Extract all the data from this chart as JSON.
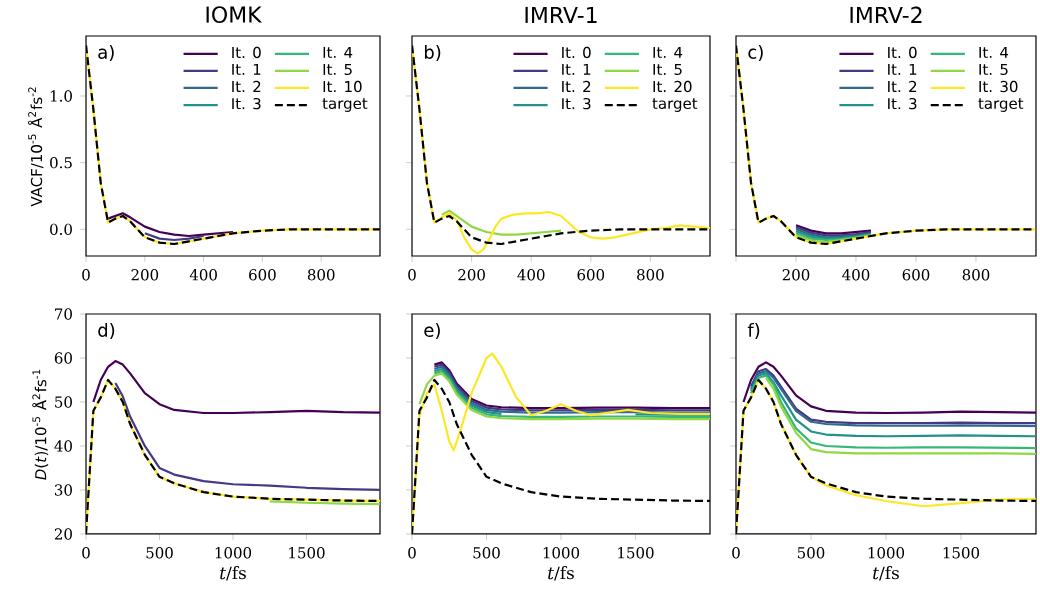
{
  "chart_data": [
    {
      "type": "line",
      "title": "IOMK",
      "ylabel": "VACF/10$^{-5}$ Å$^{2}$fs$^{-2}$",
      "annotations": [
        "a)"
      ],
      "legend": "top right",
      "x": [
        0,
        25,
        50,
        75,
        100,
        125,
        150,
        200,
        250,
        300,
        350,
        400,
        450,
        500,
        600,
        700,
        800,
        900,
        1000
      ],
      "xlim": [
        0,
        1000
      ],
      "ylim": [
        -0.2,
        1.45
      ],
      "xticks": [
        0,
        200,
        400,
        600,
        800
      ],
      "yticks": [
        {
          "value": 0,
          "label": "0.0"
        },
        {
          "value": 0.5,
          "label": "0.5"
        },
        {
          "value": 1,
          "label": "1.0"
        }
      ],
      "series": [
        {
          "name": "It. 0",
          "color": "#440154",
          "values": [
            null,
            null,
            null,
            0.08,
            0.1,
            0.12,
            0.09,
            0.02,
            -0.02,
            -0.04,
            -0.05,
            -0.04,
            -0.03,
            -0.02,
            null,
            null,
            null,
            null,
            null
          ]
        },
        {
          "name": "It. 1",
          "color": "#443983",
          "values": [
            null,
            null,
            null,
            null,
            null,
            null,
            null,
            -0.03,
            -0.07,
            -0.08,
            -0.07,
            -0.05,
            null,
            null,
            null,
            null,
            null,
            null,
            null
          ]
        },
        {
          "name": "It. 2",
          "color": "#31688e",
          "values": [
            null,
            null,
            null,
            null,
            null,
            null,
            null,
            null,
            null,
            null,
            null,
            null,
            null,
            null,
            null,
            null,
            null,
            null,
            null
          ]
        },
        {
          "name": "It. 3",
          "color": "#21918c",
          "values": [
            null,
            null,
            null,
            null,
            null,
            null,
            null,
            null,
            null,
            null,
            null,
            null,
            null,
            null,
            null,
            null,
            null,
            null,
            null
          ]
        },
        {
          "name": "It. 4",
          "color": "#35b779",
          "values": [
            null,
            null,
            null,
            null,
            null,
            null,
            null,
            null,
            null,
            null,
            null,
            null,
            null,
            null,
            null,
            null,
            null,
            null,
            null
          ]
        },
        {
          "name": "It. 5",
          "color": "#90d743",
          "values": [
            null,
            null,
            null,
            null,
            null,
            null,
            null,
            null,
            null,
            null,
            null,
            null,
            null,
            null,
            null,
            null,
            null,
            null,
            null
          ]
        },
        {
          "name": "It. 10",
          "color": "#fde725",
          "values": [
            1.38,
            0.9,
            0.35,
            0.05,
            0.08,
            0.1,
            0.06,
            -0.06,
            -0.1,
            -0.11,
            -0.09,
            -0.07,
            -0.05,
            -0.03,
            -0.01,
            0,
            0,
            0,
            0
          ]
        },
        {
          "name": "target",
          "color": "#000000",
          "line_style": "dashed",
          "values": [
            1.38,
            0.9,
            0.35,
            0.05,
            0.08,
            0.1,
            0.06,
            -0.06,
            -0.1,
            -0.11,
            -0.09,
            -0.07,
            -0.05,
            -0.03,
            -0.01,
            0,
            0,
            0,
            0
          ]
        }
      ]
    },
    {
      "type": "line",
      "title": "IMRV-1",
      "annotations": [
        "b)"
      ],
      "legend": "top right",
      "tick_labels": "x",
      "x": [
        0,
        25,
        50,
        75,
        100,
        125,
        150,
        200,
        250,
        300,
        350,
        400,
        450,
        500,
        600,
        700,
        800,
        900,
        1000
      ],
      "xlim": [
        0,
        1000
      ],
      "ylim": [
        -0.2,
        1.45
      ],
      "xticks": [
        0,
        200,
        400,
        600,
        800
      ],
      "yticks": [
        {
          "value": 0,
          "label": null
        },
        {
          "value": 0.5,
          "label": null
        },
        {
          "value": 1,
          "label": null
        }
      ],
      "series": [
        {
          "name": "It. 0",
          "color": "#440154",
          "values": [
            null,
            null,
            null,
            null,
            null,
            null,
            null,
            null,
            null,
            null,
            null,
            null,
            null,
            null,
            null,
            null,
            null,
            null,
            null
          ]
        },
        {
          "name": "It. 1",
          "color": "#443983",
          "values": [
            null,
            null,
            null,
            null,
            null,
            null,
            null,
            null,
            null,
            null,
            null,
            null,
            null,
            null,
            null,
            null,
            null,
            null,
            null
          ]
        },
        {
          "name": "It. 2",
          "color": "#31688e",
          "values": [
            null,
            null,
            null,
            null,
            null,
            null,
            null,
            null,
            null,
            null,
            null,
            null,
            null,
            null,
            null,
            null,
            null,
            null,
            null
          ]
        },
        {
          "name": "It. 3",
          "color": "#21918c",
          "values": [
            null,
            null,
            null,
            null,
            null,
            null,
            null,
            null,
            null,
            null,
            null,
            null,
            null,
            null,
            null,
            null,
            null,
            null,
            null
          ]
        },
        {
          "name": "It. 4",
          "color": "#35b779",
          "values": [
            null,
            null,
            null,
            null,
            null,
            null,
            null,
            null,
            null,
            null,
            null,
            null,
            null,
            null,
            null,
            null,
            null,
            null,
            null
          ]
        },
        {
          "name": "It. 5",
          "color": "#90d743",
          "values": [
            null,
            null,
            null,
            null,
            0.11,
            0.14,
            0.1,
            0.02,
            -0.02,
            -0.04,
            -0.04,
            -0.03,
            -0.02,
            -0.01,
            null,
            null,
            null,
            null,
            null
          ]
        },
        {
          "name": "It. 20",
          "color": "#fde725",
          "x": [
            0,
            25,
            50,
            75,
            100,
            125,
            150,
            175,
            200,
            220,
            240,
            260,
            280,
            300,
            340,
            380,
            420,
            460,
            500,
            520,
            540,
            560,
            600,
            640,
            680,
            720,
            760,
            800,
            850,
            900,
            950,
            1000
          ],
          "values": [
            1.38,
            0.9,
            0.35,
            0.05,
            0.09,
            0.12,
            0.07,
            -0.06,
            -0.15,
            -0.18,
            -0.15,
            -0.07,
            0.02,
            0.08,
            0.11,
            0.12,
            0.12,
            0.13,
            0.1,
            0.06,
            0.02,
            -0.02,
            -0.06,
            -0.07,
            -0.06,
            -0.04,
            -0.02,
            0,
            0.01,
            0.03,
            0.02,
            0.01
          ]
        },
        {
          "name": "target",
          "color": "#000000",
          "line_style": "dashed",
          "values": [
            1.38,
            0.9,
            0.35,
            0.05,
            0.08,
            0.1,
            0.06,
            -0.06,
            -0.1,
            -0.11,
            -0.09,
            -0.07,
            -0.05,
            -0.03,
            -0.01,
            0,
            0,
            0,
            0
          ]
        }
      ]
    },
    {
      "type": "line",
      "title": "IMRV-2",
      "annotations": [
        "c)"
      ],
      "legend": "top right",
      "tick_labels": "x",
      "x": [
        0,
        25,
        50,
        75,
        100,
        125,
        150,
        200,
        250,
        300,
        350,
        400,
        450,
        500,
        600,
        700,
        800,
        900,
        1000
      ],
      "xlim": [
        0,
        1000
      ],
      "ylim": [
        -0.2,
        1.45
      ],
      "xticks": [
        {
          "value": 0,
          "label": null
        },
        200,
        400,
        600,
        800
      ],
      "yticks": [
        {
          "value": 0,
          "label": null
        },
        {
          "value": 0.5,
          "label": null
        },
        {
          "value": 1,
          "label": null
        }
      ],
      "series": [
        {
          "name": "It. 0",
          "color": "#440154",
          "values": [
            null,
            null,
            null,
            null,
            null,
            null,
            null,
            0.03,
            -0.01,
            -0.03,
            -0.03,
            -0.02,
            -0.01,
            null,
            null,
            null,
            null,
            null,
            null
          ]
        },
        {
          "name": "It. 1",
          "color": "#443983",
          "values": [
            null,
            null,
            null,
            null,
            null,
            null,
            null,
            0.015,
            -0.025,
            -0.045,
            -0.045,
            -0.035,
            -0.02,
            null,
            null,
            null,
            null,
            null,
            null
          ]
        },
        {
          "name": "It. 2",
          "color": "#31688e",
          "values": [
            null,
            null,
            null,
            null,
            null,
            null,
            null,
            0,
            -0.04,
            -0.06,
            -0.055,
            -0.045,
            -0.03,
            null,
            null,
            null,
            null,
            null,
            null
          ]
        },
        {
          "name": "It. 3",
          "color": "#21918c",
          "values": [
            null,
            null,
            null,
            null,
            null,
            null,
            null,
            -0.015,
            -0.055,
            -0.07,
            -0.065,
            -0.055,
            -0.035,
            null,
            null,
            null,
            null,
            null,
            null
          ]
        },
        {
          "name": "It. 4",
          "color": "#35b779",
          "values": [
            null,
            null,
            null,
            null,
            null,
            null,
            null,
            -0.03,
            -0.07,
            -0.08,
            -0.075,
            -0.06,
            -0.04,
            null,
            null,
            null,
            null,
            null,
            null
          ]
        },
        {
          "name": "It. 5",
          "color": "#90d743",
          "values": [
            null,
            null,
            null,
            null,
            null,
            null,
            null,
            -0.045,
            -0.085,
            -0.095,
            -0.08,
            -0.065,
            -0.045,
            null,
            null,
            null,
            null,
            null,
            null
          ]
        },
        {
          "name": "It. 30",
          "color": "#fde725",
          "values": [
            1.38,
            0.9,
            0.35,
            0.05,
            0.08,
            0.1,
            0.06,
            -0.06,
            -0.1,
            -0.11,
            -0.09,
            -0.07,
            -0.05,
            -0.03,
            -0.01,
            0,
            0,
            0,
            0
          ]
        },
        {
          "name": "target",
          "color": "#000000",
          "line_style": "dashed",
          "values": [
            1.38,
            0.9,
            0.35,
            0.05,
            0.08,
            0.1,
            0.06,
            -0.06,
            -0.1,
            -0.11,
            -0.09,
            -0.07,
            -0.05,
            -0.03,
            -0.01,
            0,
            0,
            0,
            0
          ]
        }
      ]
    },
    {
      "type": "line",
      "xlabel": "*t*/fs",
      "ylabel": "*D*(*t*)/10$^{-5}$ Å$^{2}$fs$^{-1}$",
      "annotations": [
        "d)"
      ],
      "x": [
        0,
        50,
        100,
        150,
        200,
        250,
        300,
        400,
        500,
        600,
        800,
        1000,
        1250,
        1500,
        1750,
        2000
      ],
      "xlim": [
        0,
        2000
      ],
      "ylim": [
        20,
        70
      ],
      "xticks": [
        0,
        500,
        1000,
        1500
      ],
      "yticks": [
        20,
        30,
        40,
        50,
        60,
        70
      ],
      "series": [
        {
          "color": "#440154",
          "values": [
            null,
            50,
            55,
            58,
            59.3,
            58.5,
            56.5,
            52,
            49.5,
            48.2,
            47.5,
            47.5,
            47.7,
            48,
            47.7,
            47.6
          ]
        },
        {
          "color": "#443983",
          "values": [
            null,
            null,
            null,
            null,
            54.3,
            51.3,
            46.7,
            40,
            35,
            33.5,
            32,
            31.3,
            31,
            30.5,
            30.2,
            30
          ]
        },
        {
          "color": "#31688e",
          "values": [
            null,
            null,
            null,
            null,
            null,
            null,
            null,
            null,
            null,
            null,
            null,
            null,
            null,
            null,
            null,
            null
          ]
        },
        {
          "color": "#21918c",
          "values": [
            null,
            null,
            null,
            null,
            null,
            null,
            null,
            null,
            null,
            null,
            null,
            null,
            null,
            null,
            null,
            null
          ]
        },
        {
          "color": "#35b779",
          "values": [
            null,
            null,
            null,
            null,
            null,
            null,
            null,
            null,
            null,
            null,
            null,
            null,
            null,
            null,
            null,
            null
          ]
        },
        {
          "color": "#90d743",
          "values": [
            null,
            null,
            null,
            null,
            null,
            null,
            null,
            null,
            null,
            null,
            null,
            null,
            27.4,
            27.1,
            26.9,
            26.8
          ]
        },
        {
          "color": "#fde725",
          "values": [
            20,
            48,
            51,
            55,
            53,
            50,
            45,
            38,
            33,
            31.5,
            29.5,
            28.5,
            28,
            27.8,
            27.6,
            27.5
          ]
        },
        {
          "color": "#000000",
          "line_style": "dashed",
          "values": [
            20,
            48,
            51,
            55,
            53,
            50,
            45,
            38,
            33,
            31.5,
            29.5,
            28.5,
            28,
            27.8,
            27.6,
            27.5
          ]
        }
      ]
    },
    {
      "type": "line",
      "xlabel": "*t*/fs",
      "annotations": [
        "e)"
      ],
      "tick_labels": "x",
      "x": [
        0,
        50,
        100,
        150,
        200,
        250,
        300,
        400,
        500,
        600,
        800,
        1000,
        1250,
        1500,
        1750,
        2000
      ],
      "xlim": [
        0,
        2000
      ],
      "ylim": [
        20,
        70
      ],
      "xticks": [
        0,
        500,
        1000,
        1500
      ],
      "yticks": [
        {
          "value": 20,
          "label": null
        },
        {
          "value": 30,
          "label": null
        },
        {
          "value": 40,
          "label": null
        },
        {
          "value": 50,
          "label": null
        },
        {
          "value": 60,
          "label": null
        },
        {
          "value": 70,
          "label": null
        }
      ],
      "series": [
        {
          "color": "#440154",
          "values": [
            null,
            null,
            null,
            58.5,
            59,
            57.2,
            54.2,
            50.7,
            49.2,
            48.8,
            48.6,
            48.6,
            48.7,
            48.7,
            48.6,
            48.6
          ]
        },
        {
          "color": "#443983",
          "values": [
            null,
            null,
            null,
            58,
            58.5,
            56.7,
            53.7,
            50.2,
            48.7,
            48.3,
            48.1,
            48.1,
            48.2,
            48.2,
            48.1,
            48.1
          ]
        },
        {
          "color": "#31688e",
          "values": [
            null,
            null,
            null,
            57.5,
            58,
            56.2,
            53.2,
            49.7,
            48.2,
            47.8,
            47.6,
            47.6,
            47.7,
            47.7,
            47.6,
            47.6
          ]
        },
        {
          "color": "#21918c",
          "values": [
            null,
            null,
            null,
            57,
            57.5,
            55.7,
            52.7,
            49.2,
            47.7,
            47.3,
            null,
            null,
            null,
            47.2,
            47.1,
            47.1
          ]
        },
        {
          "color": "#35b779",
          "values": [
            null,
            null,
            null,
            56.5,
            57,
            55.2,
            52.2,
            48.7,
            47.2,
            46.8,
            46.6,
            46.6,
            46.7,
            46.7,
            46.6,
            46.6
          ]
        },
        {
          "color": "#90d743",
          "values": [
            null,
            49.5,
            54,
            56,
            56.5,
            54.7,
            51.7,
            48.2,
            46.7,
            46.3,
            46.1,
            46.1,
            46.2,
            46.2,
            46.1,
            46.1
          ]
        },
        {
          "color": "#fde725",
          "x": [
            0,
            50,
            100,
            150,
            200,
            250,
            280,
            320,
            400,
            500,
            540,
            600,
            700,
            800,
            900,
            1000,
            1100,
            1200,
            1300,
            1450,
            1600,
            1800,
            2000
          ],
          "values": [
            20,
            47,
            52,
            54,
            48,
            41,
            39,
            43,
            52,
            60,
            61,
            58,
            51,
            47,
            48,
            49.5,
            48,
            47,
            47.5,
            48.2,
            47.5,
            47.3,
            47.3
          ]
        },
        {
          "color": "#000000",
          "line_style": "dashed",
          "values": [
            20,
            48,
            51,
            55,
            53,
            50,
            45,
            38,
            33,
            31.5,
            29.5,
            28.5,
            28,
            27.8,
            27.6,
            27.5
          ]
        }
      ]
    },
    {
      "type": "line",
      "xlabel": "*t*/fs",
      "annotations": [
        "f)"
      ],
      "tick_labels": "x",
      "x": [
        0,
        50,
        100,
        150,
        200,
        250,
        300,
        400,
        500,
        600,
        800,
        1000,
        1250,
        1500,
        1750,
        2000
      ],
      "xlim": [
        0,
        2000
      ],
      "ylim": [
        20,
        70
      ],
      "xticks": [
        0,
        500,
        1000,
        1500
      ],
      "yticks": [
        {
          "value": 20,
          "label": null
        },
        {
          "value": 30,
          "label": null
        },
        {
          "value": 40,
          "label": null
        },
        {
          "value": 50,
          "label": null
        },
        {
          "value": 60,
          "label": null
        },
        {
          "value": 70,
          "label": null
        }
      ],
      "series": [
        {
          "color": "#440154",
          "values": [
            null,
            50,
            55,
            58,
            59,
            58,
            56,
            51.5,
            49,
            48,
            47.6,
            47.5,
            47.6,
            47.8,
            47.7,
            47.6
          ]
        },
        {
          "color": "#443983",
          "values": [
            null,
            null,
            53.5,
            57,
            57.5,
            56,
            53.5,
            48.5,
            46,
            45.5,
            45.2,
            45.2,
            45.2,
            45.3,
            45.2,
            45.2
          ]
        },
        {
          "color": "#31688e",
          "values": [
            null,
            null,
            53,
            56.5,
            57,
            55.5,
            53,
            48,
            45.5,
            45,
            44.7,
            44.6,
            44.6,
            44.7,
            44.6,
            44.5
          ]
        },
        {
          "color": "#21918c",
          "values": [
            null,
            null,
            52.5,
            56,
            56.5,
            54.5,
            51.5,
            46,
            43.3,
            42.6,
            42.3,
            42.2,
            42.3,
            42.4,
            42.3,
            42.2
          ]
        },
        {
          "color": "#35b779",
          "values": [
            null,
            null,
            52,
            55.5,
            56,
            54,
            50,
            44,
            40.8,
            40,
            39.7,
            39.6,
            39.7,
            39.7,
            39.6,
            39.5
          ]
        },
        {
          "color": "#90d743",
          "values": [
            null,
            null,
            null,
            null,
            55.5,
            53,
            49,
            43,
            39.3,
            38.6,
            38.3,
            38.3,
            38.3,
            38.3,
            38.3,
            38.2
          ]
        },
        {
          "color": "#fde725",
          "values": [
            20,
            48,
            51,
            55,
            53,
            50,
            45,
            38,
            33,
            31,
            28.8,
            27.5,
            26.3,
            27,
            27.8,
            28
          ]
        },
        {
          "color": "#000000",
          "line_style": "dashed",
          "values": [
            20,
            48,
            51,
            55,
            53,
            50,
            45,
            38,
            33,
            31.5,
            29.5,
            28.5,
            28,
            27.8,
            27.6,
            27.5
          ]
        }
      ]
    }
  ]
}
